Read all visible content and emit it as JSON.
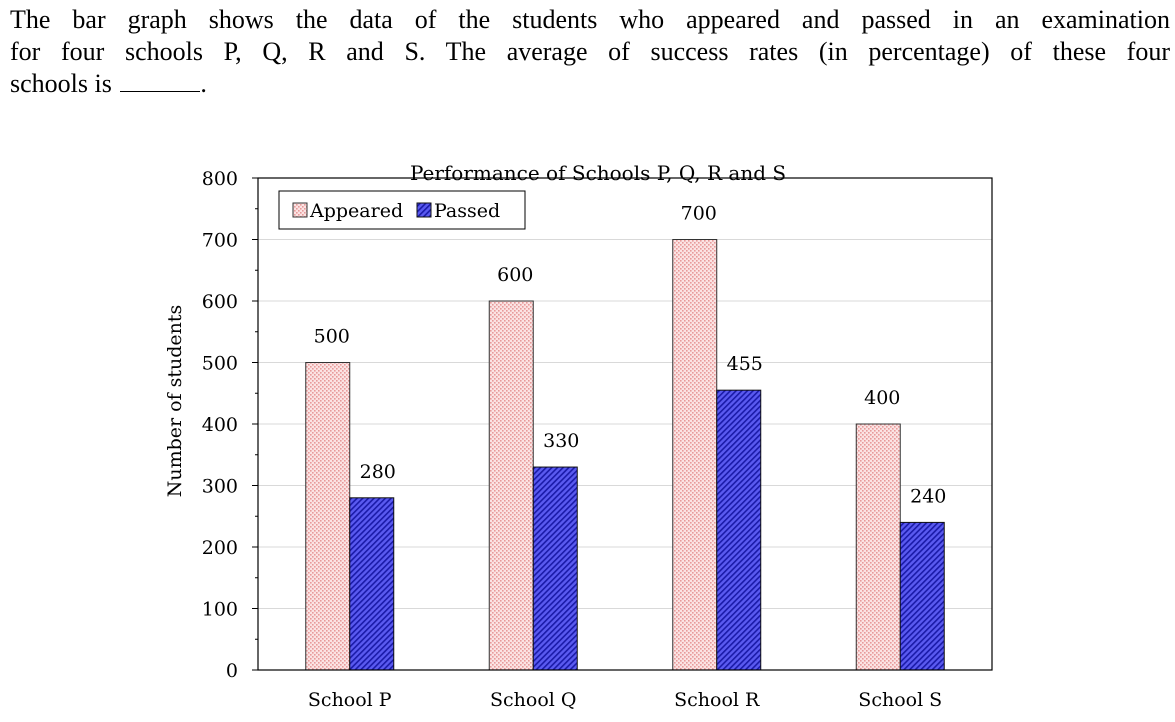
{
  "question": {
    "line1": "The bar graph shows the data of the students who appeared and passed in an examination",
    "line2": "for four schools P, Q, R and S. The average of success rates (in percentage) of these four",
    "line3_prefix": "schools is",
    "line3_suffix": "."
  },
  "chart_data": {
    "type": "bar",
    "title": "Performance of Schools P, Q, R and S",
    "xlabel": "",
    "ylabel": "Number of students",
    "categories": [
      "School P",
      "School Q",
      "School R",
      "School S"
    ],
    "series": [
      {
        "name": "Appeared",
        "values": [
          500,
          600,
          700,
          400
        ],
        "color": "#f4c6c6",
        "pattern": "dotted-pink"
      },
      {
        "name": "Passed",
        "values": [
          280,
          330,
          455,
          240
        ],
        "color": "#3a3ad8",
        "pattern": "diagonal-hatch-blue"
      }
    ],
    "ylim": [
      0,
      800
    ],
    "yticks": [
      0,
      100,
      200,
      300,
      400,
      500,
      600,
      700,
      800
    ],
    "grid": true,
    "legend_position": "top-left",
    "data_labels": true
  }
}
